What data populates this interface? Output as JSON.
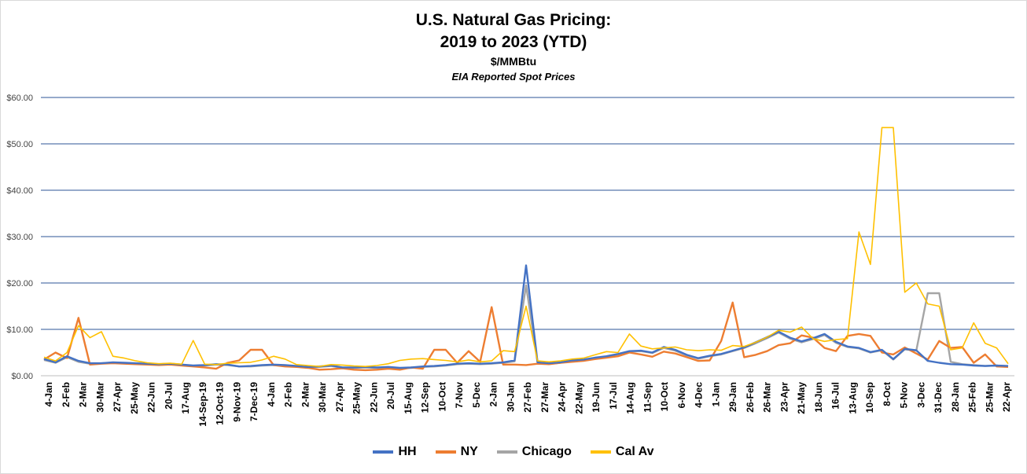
{
  "chart_data": {
    "type": "line",
    "title": "U.S. Natural Gas Pricing:",
    "title_line2": "2019 to 2023 (YTD)",
    "subtitle": "$/MMBtu",
    "subtitle2": "EIA Reported Spot Prices",
    "xlabel": "",
    "ylabel": "",
    "ylim": [
      0,
      60
    ],
    "ytick_labels": [
      "$0.00",
      "$10.00",
      "$20.00",
      "$30.00",
      "$40.00",
      "$50.00",
      "$60.00"
    ],
    "grid": "horizontal",
    "legend_position": "bottom",
    "x_tick_labels": [
      "4-Jan",
      "2-Feb",
      "2-Mar",
      "30-Mar",
      "27-Apr",
      "25-May",
      "22-Jun",
      "20-Jul",
      "17-Aug",
      "14-Sep-19",
      "12-Oct-19",
      "9-Nov-19",
      "7-Dec-19",
      "4-Jan",
      "2-Feb",
      "2-Mar",
      "30-Mar",
      "27-Apr",
      "25-May",
      "22-Jun",
      "20-Jul",
      "15-Aug",
      "12-Sep",
      "10-Oct",
      "7-Nov",
      "5-Dec",
      "2-Jan",
      "30-Jan",
      "27-Feb",
      "27-Mar",
      "24-Apr",
      "22-May",
      "19-Jun",
      "17-Jul",
      "14-Aug",
      "11-Sep",
      "10-Oct",
      "6-Nov",
      "4-Dec",
      "1-Jan",
      "29-Jan",
      "26-Feb",
      "26-Mar",
      "23-Apr",
      "21-May",
      "18-Jun",
      "16-Jul",
      "13-Aug",
      "10-Sep",
      "8-Oct",
      "5-Nov",
      "3-Dec",
      "31-Dec",
      "28-Jan",
      "25-Feb",
      "25-Mar",
      "22-Apr"
    ],
    "series": [
      {
        "name": "HH",
        "color": "#4472c4",
        "values": [
          3.6,
          2.9,
          4.2,
          3.2,
          2.7,
          2.7,
          2.9,
          2.8,
          2.7,
          2.6,
          2.5,
          2.6,
          2.4,
          2.2,
          2.3,
          2.5,
          2.4,
          2.0,
          2.1,
          2.3,
          2.4,
          2.3,
          2.1,
          1.9,
          2.0,
          2.2,
          1.8,
          1.8,
          1.9,
          1.8,
          1.9,
          1.7,
          1.8,
          2.0,
          2.1,
          2.3,
          2.6,
          2.7,
          2.6,
          2.7,
          2.9,
          3.3,
          23.8,
          2.9,
          2.7,
          2.9,
          3.3,
          3.5,
          3.9,
          4.2,
          4.7,
          5.3,
          5.4,
          5.0,
          6.2,
          5.6,
          4.5,
          3.8,
          4.3,
          4.7,
          5.4,
          6.1,
          7.2,
          8.3,
          9.5,
          8.2,
          7.4,
          8.1,
          9.0,
          7.3,
          6.3,
          6.0,
          5.1,
          5.6,
          3.6,
          5.8,
          5.5,
          3.2,
          2.8,
          2.5,
          2.4,
          2.2,
          2.1,
          2.2,
          2.1
        ]
      },
      {
        "name": "NY",
        "color": "#ed7d31",
        "values": [
          3.5,
          5.0,
          3.8,
          12.5,
          2.4,
          2.6,
          2.7,
          2.6,
          2.5,
          2.4,
          2.3,
          2.4,
          2.2,
          2.0,
          1.8,
          1.5,
          2.8,
          3.3,
          5.6,
          5.6,
          2.3,
          2.0,
          1.9,
          1.7,
          1.3,
          1.4,
          1.6,
          1.3,
          1.2,
          1.3,
          1.5,
          1.3,
          1.8,
          1.5,
          5.6,
          5.6,
          2.8,
          5.3,
          3.0,
          14.8,
          2.4,
          2.4,
          2.3,
          2.6,
          2.5,
          2.8,
          3.0,
          3.2,
          3.6,
          3.9,
          4.2,
          5.0,
          4.6,
          4.1,
          5.2,
          4.8,
          4.0,
          3.2,
          3.3,
          7.5,
          15.8,
          4.0,
          4.5,
          5.3,
          6.6,
          7.0,
          8.7,
          8.2,
          6.0,
          5.3,
          8.6,
          9.0,
          8.6,
          5.0,
          4.6,
          6.1,
          4.8,
          3.5,
          7.5,
          6.0,
          6.2,
          2.8,
          4.6,
          2.0,
          1.9
        ]
      },
      {
        "name": "Chicago",
        "color": "#a5a5a5",
        "values": [
          3.4,
          2.8,
          4.0,
          3.0,
          2.6,
          2.7,
          2.8,
          2.7,
          2.6,
          2.5,
          2.4,
          2.5,
          2.3,
          2.1,
          2.2,
          2.4,
          2.3,
          2.0,
          2.0,
          2.2,
          2.3,
          2.2,
          2.0,
          1.8,
          1.9,
          2.1,
          1.7,
          1.7,
          1.8,
          1.7,
          1.8,
          1.6,
          1.7,
          1.9,
          2.0,
          2.2,
          2.5,
          2.6,
          2.5,
          2.6,
          2.8,
          3.1,
          19.5,
          2.8,
          2.6,
          2.8,
          3.2,
          3.4,
          3.8,
          4.1,
          4.6,
          5.2,
          5.3,
          4.9,
          6.0,
          5.4,
          4.4,
          3.7,
          4.2,
          4.6,
          5.3,
          6.0,
          7.0,
          8.1,
          9.3,
          8.0,
          7.2,
          7.9,
          8.8,
          7.1,
          6.2,
          5.9,
          5.0,
          5.5,
          3.5,
          5.7,
          5.4,
          17.8,
          17.8,
          3.0,
          2.5,
          2.3,
          2.1,
          2.2,
          2.0
        ]
      },
      {
        "name": "Cal Av",
        "color": "#ffc000",
        "values": [
          4.0,
          3.2,
          5.0,
          10.8,
          8.2,
          9.5,
          4.2,
          3.8,
          3.2,
          2.8,
          2.6,
          2.7,
          2.5,
          7.6,
          2.5,
          2.4,
          2.7,
          2.8,
          2.9,
          3.4,
          4.2,
          3.6,
          2.4,
          2.2,
          2.0,
          2.4,
          2.3,
          2.1,
          2.0,
          2.2,
          2.6,
          3.3,
          3.6,
          3.7,
          3.5,
          3.3,
          3.0,
          3.4,
          3.0,
          3.2,
          5.4,
          5.2,
          15.0,
          3.2,
          3.0,
          3.2,
          3.6,
          3.8,
          4.5,
          5.2,
          5.0,
          9.0,
          6.4,
          5.8,
          6.0,
          6.2,
          5.6,
          5.4,
          5.6,
          5.5,
          6.5,
          6.3,
          7.2,
          8.3,
          9.8,
          9.4,
          10.5,
          8.0,
          7.4,
          7.8,
          8.0,
          31.0,
          24.0,
          53.5,
          53.5,
          18.0,
          20.0,
          15.5,
          15.0,
          5.6,
          6.0,
          11.4,
          7.0,
          6.0,
          2.6
        ]
      }
    ]
  }
}
